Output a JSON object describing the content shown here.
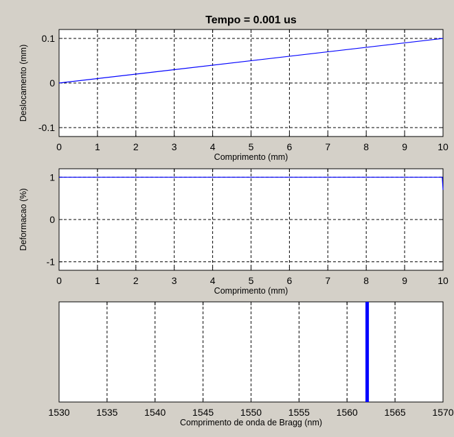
{
  "chart_data": [
    {
      "type": "line",
      "title": "Tempo = 0.001 us",
      "xlabel": "Comprimento (mm)",
      "ylabel": "Deslocamento (mm)",
      "xlim": [
        0,
        10
      ],
      "ylim": [
        -0.12,
        0.12
      ],
      "xticks": [
        0,
        1,
        2,
        3,
        4,
        5,
        6,
        7,
        8,
        9,
        10
      ],
      "yticks": [
        -0.1,
        0,
        0.1
      ],
      "ytick_labels": [
        "-0.1",
        "0",
        "0.1"
      ],
      "grid": true,
      "series": [
        {
          "x": [
            0,
            10
          ],
          "y": [
            0,
            0.1
          ],
          "color": "#0000ff"
        }
      ]
    },
    {
      "type": "line",
      "title": "",
      "xlabel": "Comprimento (mm)",
      "ylabel": "Deformacao (%)",
      "xlim": [
        0,
        10
      ],
      "ylim": [
        -1.2,
        1.2
      ],
      "xticks": [
        0,
        1,
        2,
        3,
        4,
        5,
        6,
        7,
        8,
        9,
        10
      ],
      "yticks": [
        -1,
        0,
        1
      ],
      "ytick_labels": [
        "-1",
        "0",
        "1"
      ],
      "grid": true,
      "series": [
        {
          "x": [
            0,
            9.98,
            10
          ],
          "y": [
            1,
            1,
            0.7
          ],
          "color": "#0000ff"
        }
      ]
    },
    {
      "type": "bar",
      "title": "",
      "xlabel": "Comprimento de onda de Bragg (nm)",
      "ylabel": "",
      "xlim": [
        1530,
        1570
      ],
      "xticks": [
        1530,
        1535,
        1540,
        1545,
        1550,
        1555,
        1560,
        1565,
        1570
      ],
      "yticks": [],
      "grid": true,
      "series": [
        {
          "x": [
            1562.1
          ],
          "color": "#0000ff"
        }
      ]
    }
  ]
}
